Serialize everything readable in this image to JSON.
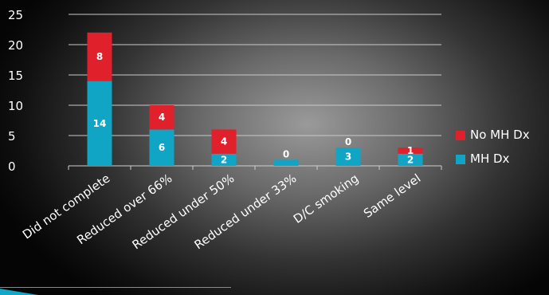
{
  "chart_data": {
    "type": "bar",
    "stacked": true,
    "categories": [
      "Did not complete",
      "Reduced over 66%",
      "Reduced under 50%",
      "Reduced under 33%",
      "D/C smoking",
      "Same level"
    ],
    "series": [
      {
        "name": "MH Dx",
        "values": [
          14,
          6,
          2,
          1,
          3,
          2
        ],
        "labels": [
          "14",
          "6",
          "2",
          "",
          "3",
          "2"
        ],
        "color": "#10a5c5"
      },
      {
        "name": "No MH Dx",
        "values": [
          8,
          4,
          4,
          0,
          0,
          1
        ],
        "labels": [
          "8",
          "4",
          "4",
          "0",
          "0",
          "1"
        ],
        "color": "#e0202a"
      }
    ],
    "yticks": [
      "0",
      "5",
      "10",
      "15",
      "20",
      "25"
    ],
    "ylim": [
      0,
      25
    ],
    "grid": true,
    "legend_position": "right"
  }
}
